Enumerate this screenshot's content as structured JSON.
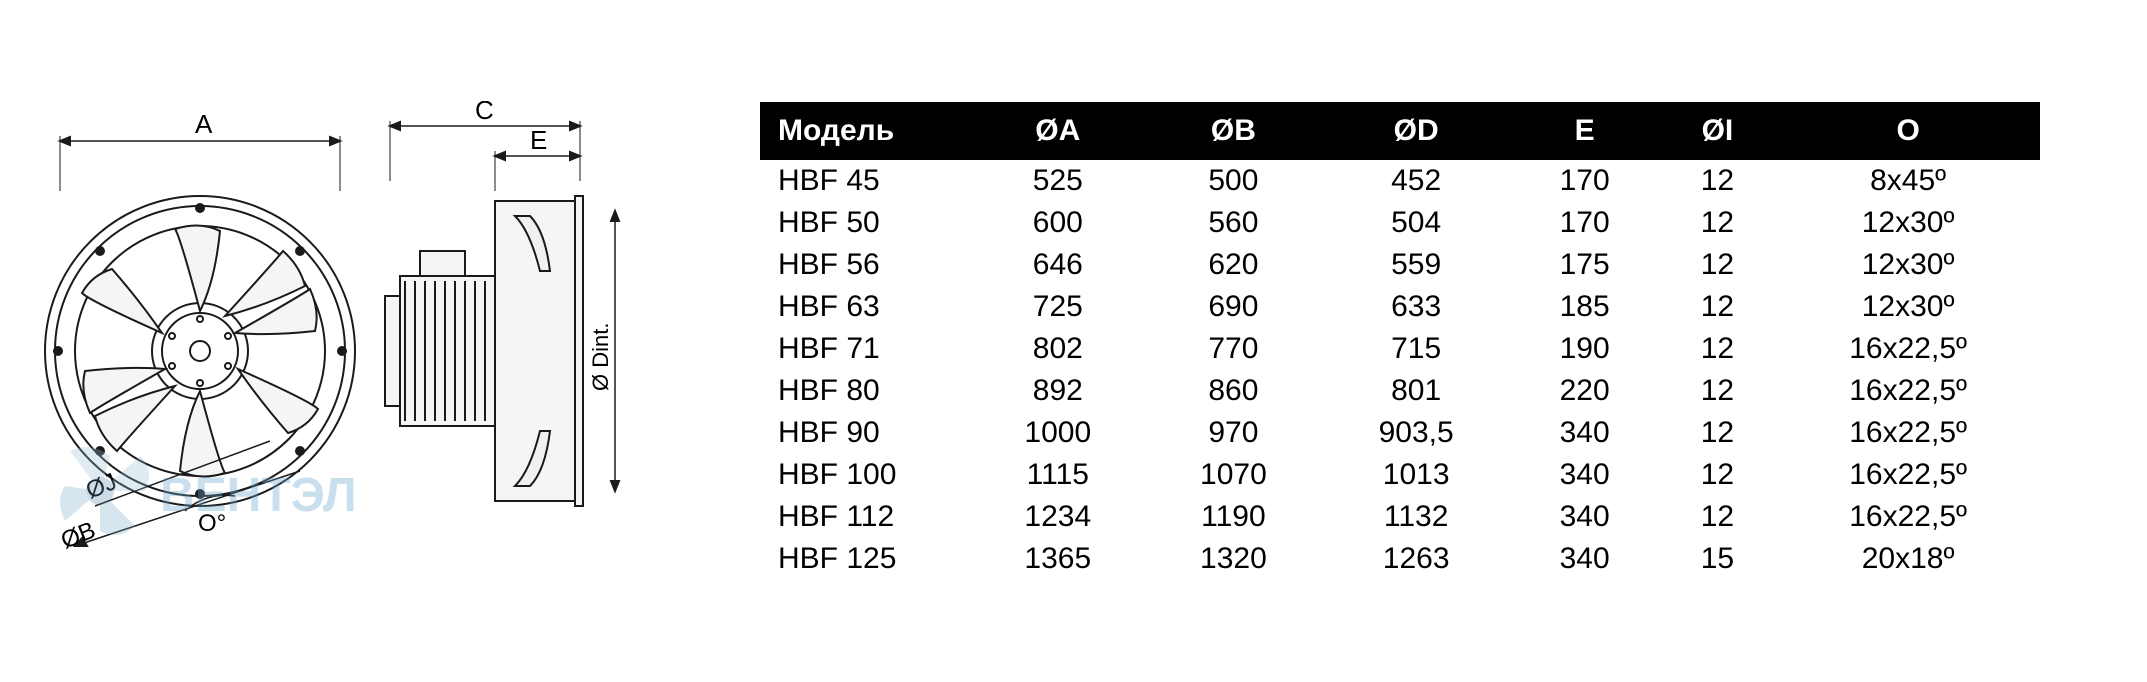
{
  "table": {
    "columns": [
      "Модель",
      "ØA",
      "ØB",
      "ØD",
      "E",
      "ØI",
      "O"
    ],
    "rows": [
      [
        "HBF 45",
        "525",
        "500",
        "452",
        "170",
        "12",
        "8x45º"
      ],
      [
        "HBF 50",
        "600",
        "560",
        "504",
        "170",
        "12",
        "12x30º"
      ],
      [
        "HBF 56",
        "646",
        "620",
        "559",
        "175",
        "12",
        "12x30º"
      ],
      [
        "HBF 63",
        "725",
        "690",
        "633",
        "185",
        "12",
        "12x30º"
      ],
      [
        "HBF 71",
        "802",
        "770",
        "715",
        "190",
        "12",
        "16x22,5º"
      ],
      [
        "HBF 80",
        "892",
        "860",
        "801",
        "220",
        "12",
        "16x22,5º"
      ],
      [
        "HBF 90",
        "1000",
        "970",
        "903,5",
        "340",
        "12",
        "16x22,5º"
      ],
      [
        "HBF 100",
        "1115",
        "1070",
        "1013",
        "340",
        "12",
        "16x22,5º"
      ],
      [
        "HBF 112",
        "1234",
        "1190",
        "1132",
        "340",
        "12",
        "16x22,5º"
      ],
      [
        "HBF 125",
        "1365",
        "1320",
        "1263",
        "340",
        "15",
        "20x18º"
      ]
    ],
    "header_bg": "#000000",
    "header_fg": "#ffffff",
    "cell_fg": "#000000",
    "font_size": 30
  },
  "diagram": {
    "labels": {
      "A": "A",
      "B": "ØB",
      "C": "C",
      "E": "E",
      "J": "ØJ",
      "O": "O°",
      "Dint": "Ø Dint."
    },
    "stroke_color": "#1a1a1a",
    "stroke_width": 2,
    "fill_color": "#ffffff"
  },
  "watermark": {
    "text": "ВЕНТЭЛ",
    "color": "#3aa9e0",
    "font_size": 48
  }
}
